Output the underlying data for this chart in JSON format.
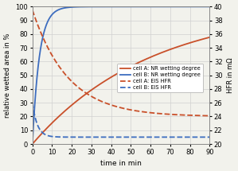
{
  "title": "",
  "xlabel": "time in min",
  "ylabel_left": "relative wetted area in %",
  "ylabel_right": "HFR in mΩ",
  "xlim": [
    0,
    90
  ],
  "ylim_left": [
    0,
    100
  ],
  "ylim_right": [
    20,
    40
  ],
  "xticks": [
    0,
    10,
    20,
    30,
    40,
    50,
    60,
    70,
    80,
    90
  ],
  "yticks_left": [
    0,
    10,
    20,
    30,
    40,
    50,
    60,
    70,
    80,
    90,
    100
  ],
  "yticks_right": [
    20,
    22,
    24,
    26,
    28,
    30,
    32,
    34,
    36,
    38,
    40
  ],
  "color_A": "#c9502a",
  "color_B": "#3d6dbf",
  "legend_entries": [
    "cell A: NR wetting degree",
    "cell B: NR wetting degree",
    "cell A: EIS HFR",
    "cell B: EIS HFR"
  ],
  "background": "#f2f2ec",
  "grid_color": "#d0d0d0",
  "cell_A_wet_tau": 60,
  "cell_B_wet_tau": 3.5,
  "cell_A_HFR_start": 39.5,
  "cell_A_HFR_end": 24.0,
  "cell_A_HFR_tau": 18,
  "cell_B_HFR_start": 26.0,
  "cell_B_HFR_end": 21.0,
  "cell_B_HFR_tau": 2.5
}
